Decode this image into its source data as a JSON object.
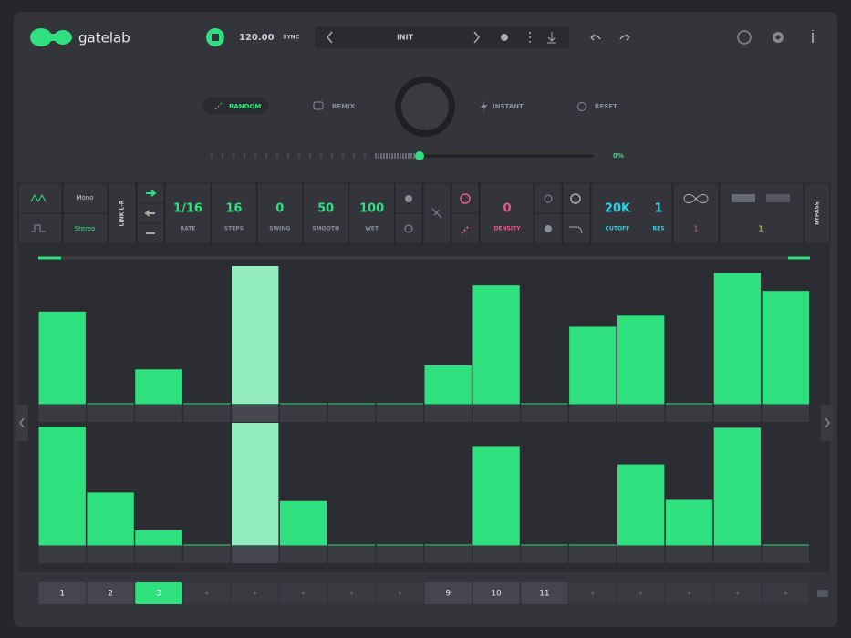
{
  "header": {
    "logo": "gatelab",
    "bpm": "120.00",
    "sync": "SYNC",
    "preset": "INIT"
  },
  "actions": [
    "RANDOM",
    "REMIX",
    "INSTANT",
    "RESET"
  ],
  "slider": {
    "label": "0%"
  },
  "controls": {
    "mono": "Mono",
    "stereo": "Stereo",
    "link": "LINK L-R",
    "params": [
      {
        "value": "1/16",
        "label": "RATE"
      },
      {
        "value": "16",
        "label": "STEPS"
      },
      {
        "value": "0",
        "label": "SWING"
      },
      {
        "value": "50",
        "label": "SMOOTH"
      },
      {
        "value": "100",
        "label": "WET"
      }
    ],
    "density": {
      "value": "0",
      "label": "DENSITY"
    },
    "cutoff": {
      "value": "20K",
      "label": "CUTOFF"
    },
    "res": {
      "value": "1",
      "label": "RES"
    },
    "loop": "1",
    "noise": "1",
    "bypass": "BYPASS"
  },
  "sequencer": {
    "current_step_index": 4,
    "top": [
      67,
      0,
      25,
      0,
      100,
      0,
      0,
      0,
      28,
      86,
      0,
      56,
      64,
      0,
      95,
      82
    ],
    "bottom": [
      97,
      43,
      12,
      0,
      100,
      36,
      0,
      0,
      0,
      81,
      0,
      0,
      66,
      37,
      96,
      0
    ]
  },
  "patterns": {
    "active_index": 2,
    "items": [
      "1",
      "2",
      "3",
      "+",
      "+",
      "+",
      "+",
      "+",
      "9",
      "10",
      "11",
      "+",
      "+",
      "+",
      "+",
      "+"
    ]
  }
}
